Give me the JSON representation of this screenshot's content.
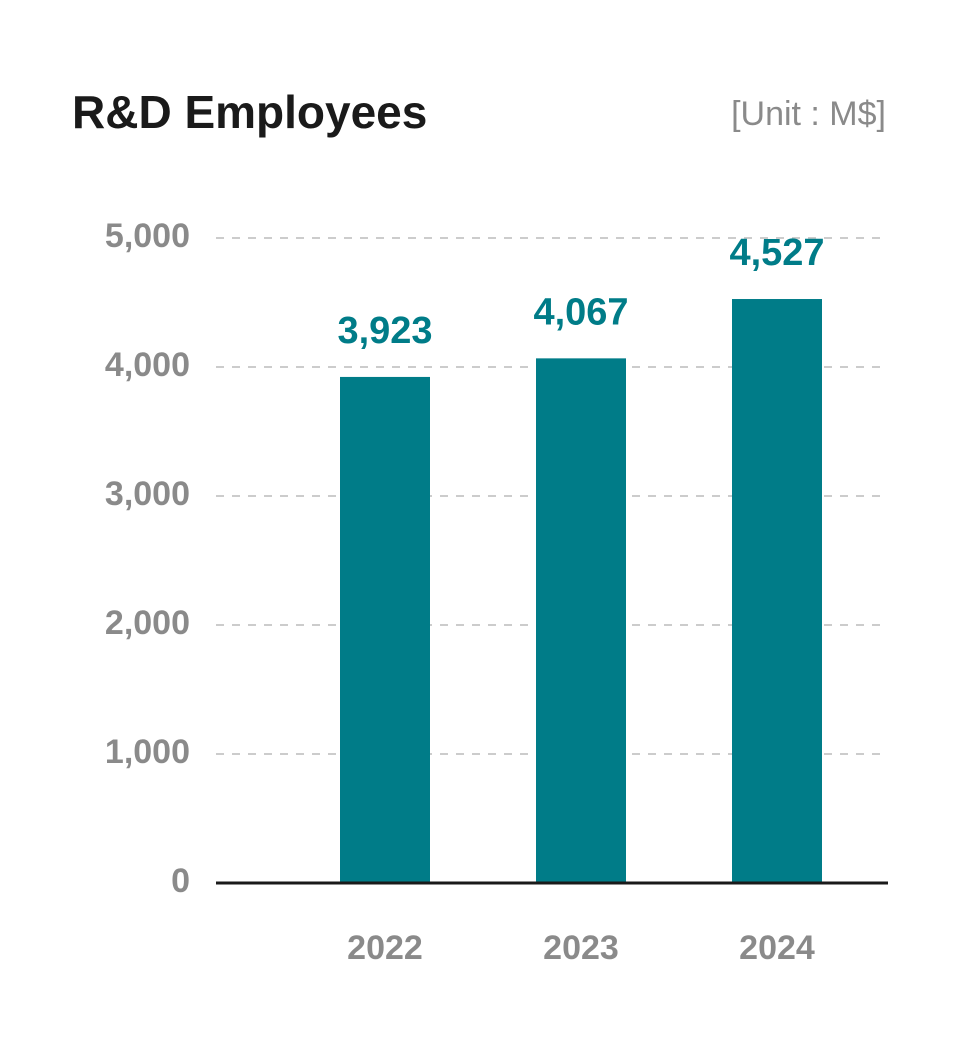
{
  "chart_data": {
    "type": "bar",
    "title": "R&D Employees",
    "unit": "[Unit : M$]",
    "categories": [
      "2022",
      "2023",
      "2024"
    ],
    "values": [
      3923,
      4067,
      4527
    ],
    "value_labels": [
      "3,923",
      "4,067",
      "4,527"
    ],
    "color": "#007c88",
    "ylim": [
      0,
      5000
    ],
    "yticks": [
      0,
      {
        "value": 1000,
        "label": "1,000"
      },
      {
        "value": 2000,
        "label": "2,000"
      },
      {
        "value": 3000,
        "label": "3,000"
      },
      {
        "value": 4000,
        "label": "4,000"
      },
      {
        "value": 5000,
        "label": "5,000"
      }
    ],
    "grid": true
  }
}
